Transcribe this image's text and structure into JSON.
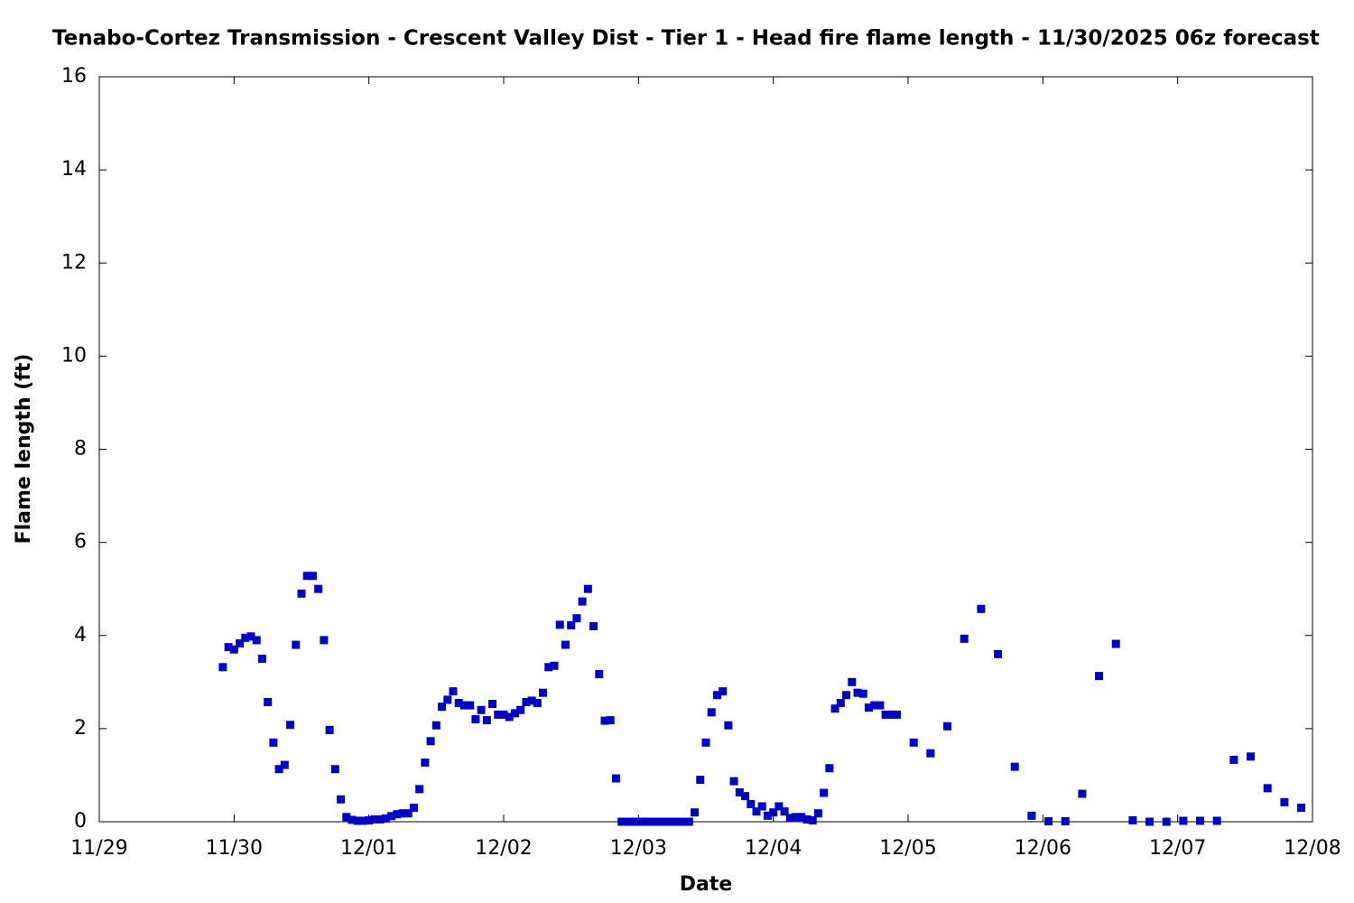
{
  "chart_data": {
    "type": "scatter",
    "title": "Tenabo-Cortez Transmission - Crescent Valley Dist - Tier 1 - Head fire flame length - 11/30/2025 06z forecast",
    "xlabel": "Date",
    "ylabel": "Flame length (ft)",
    "x": [
      22,
      23,
      24,
      25,
      26,
      27,
      28,
      29,
      30,
      31,
      32,
      33,
      34,
      35,
      36,
      37,
      38,
      39,
      40,
      41,
      42,
      43,
      44,
      45,
      46,
      47,
      48,
      49,
      50,
      51,
      52,
      53,
      54,
      55,
      56,
      57,
      58,
      59,
      60,
      61,
      62,
      63,
      64,
      65,
      66,
      67,
      68,
      69,
      70,
      71,
      72,
      73,
      74,
      75,
      76,
      77,
      78,
      79,
      80,
      81,
      82,
      83,
      84,
      85,
      86,
      87,
      88,
      89,
      90,
      91,
      92,
      93,
      94,
      95,
      96,
      97,
      98,
      99,
      100,
      101,
      102,
      103,
      104,
      105,
      106,
      107,
      108,
      109,
      110,
      111,
      112,
      113,
      114,
      115,
      116,
      117,
      118,
      119,
      120,
      121,
      122,
      123,
      124,
      125,
      126,
      127,
      128,
      129,
      130,
      131,
      132,
      133,
      134,
      135,
      136,
      137,
      138,
      139,
      140,
      141,
      142,
      145,
      148,
      151,
      154,
      157,
      160,
      163,
      166,
      169,
      172,
      175,
      178,
      181,
      184,
      187,
      190,
      193,
      196,
      199,
      202,
      205,
      208,
      211,
      214
    ],
    "series": [
      {
        "name": "Head fire flame length",
        "color": "#0000cc",
        "values": [
          3.32,
          3.75,
          3.7,
          3.83,
          3.95,
          3.98,
          3.9,
          3.5,
          2.57,
          1.7,
          1.13,
          1.22,
          2.08,
          3.8,
          4.9,
          5.28,
          5.28,
          5.0,
          3.9,
          1.97,
          1.13,
          0.48,
          0.1,
          0.04,
          0.02,
          0.02,
          0.03,
          0.05,
          0.05,
          0.07,
          0.12,
          0.16,
          0.18,
          0.18,
          0.3,
          0.7,
          1.27,
          1.73,
          2.07,
          2.47,
          2.62,
          2.8,
          2.55,
          2.5,
          2.5,
          2.2,
          2.4,
          2.18,
          2.53,
          2.3,
          2.3,
          2.25,
          2.33,
          2.4,
          2.57,
          2.6,
          2.55,
          2.77,
          3.32,
          3.35,
          4.23,
          3.8,
          4.22,
          4.37,
          4.73,
          5.0,
          4.2,
          3.17,
          2.17,
          2.18,
          0.93,
          0,
          0,
          0,
          0,
          0,
          0,
          0,
          0,
          0,
          0,
          0,
          0,
          0,
          0.2,
          0.9,
          1.7,
          2.35,
          2.72,
          2.8,
          2.07,
          0.87,
          0.63,
          0.55,
          0.38,
          0.22,
          0.33,
          0.13,
          0.2,
          0.33,
          0.22,
          0.08,
          0.1,
          0.1,
          0.05,
          0.03,
          0.18,
          0.62,
          1.15,
          2.43,
          2.55,
          2.72,
          3.0,
          2.77,
          2.75,
          2.45,
          2.5,
          2.5,
          2.3,
          2.3,
          2.3,
          1.7,
          1.47,
          2.05,
          3.93,
          4.57,
          3.6,
          1.18,
          0.13,
          0.01,
          0.01,
          0.6,
          3.13,
          3.82,
          0.03,
          0,
          0,
          0.02,
          0.02,
          0.02,
          1.33,
          1.4,
          0.72,
          0.42,
          0.3
        ]
      }
    ],
    "xlim": [
      0,
      216
    ],
    "xticks": [
      {
        "value": 0,
        "label": "11/29"
      },
      {
        "value": 24,
        "label": "11/30"
      },
      {
        "value": 48,
        "label": "12/01"
      },
      {
        "value": 72,
        "label": "12/02"
      },
      {
        "value": 96,
        "label": "12/03"
      },
      {
        "value": 120,
        "label": "12/04"
      },
      {
        "value": 144,
        "label": "12/05"
      },
      {
        "value": 168,
        "label": "12/06"
      },
      {
        "value": 192,
        "label": "12/07"
      },
      {
        "value": 216,
        "label": "12/08"
      }
    ],
    "ylim": [
      0,
      16
    ],
    "yticks": [
      0,
      2,
      4,
      6,
      8,
      10,
      12,
      14,
      16
    ],
    "grid": false
  }
}
